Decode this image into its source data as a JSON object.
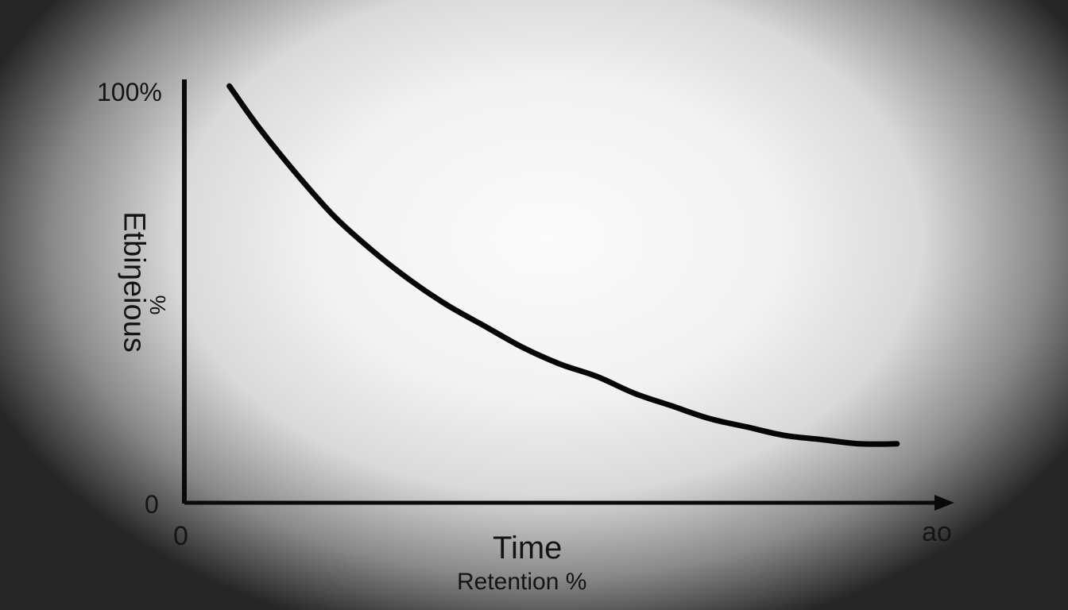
{
  "chart_data": {
    "type": "line",
    "title": "",
    "subtitle": "Retention %",
    "xlabel": "Time",
    "ylabel": "Etbiŋeious",
    "ylabel_sub": "%",
    "x_ticks": [
      "0",
      "ao"
    ],
    "y_ticks": [
      "100%",
      "0"
    ],
    "xlim": [
      0,
      100
    ],
    "ylim": [
      0,
      100
    ],
    "grid": false,
    "legend": "none",
    "series": [
      {
        "x": [
          6,
          10,
          15,
          20,
          25,
          30,
          35,
          40,
          45,
          50,
          55,
          60,
          65,
          70,
          75,
          80,
          85,
          90,
          95
        ],
        "values": [
          99,
          89,
          78,
          68,
          60,
          53,
          47,
          42,
          37,
          33,
          30,
          26,
          23,
          20,
          18,
          16,
          15,
          14,
          14
        ]
      }
    ],
    "colors": {
      "line": "#050505",
      "axis": "#0a0a0a"
    }
  }
}
